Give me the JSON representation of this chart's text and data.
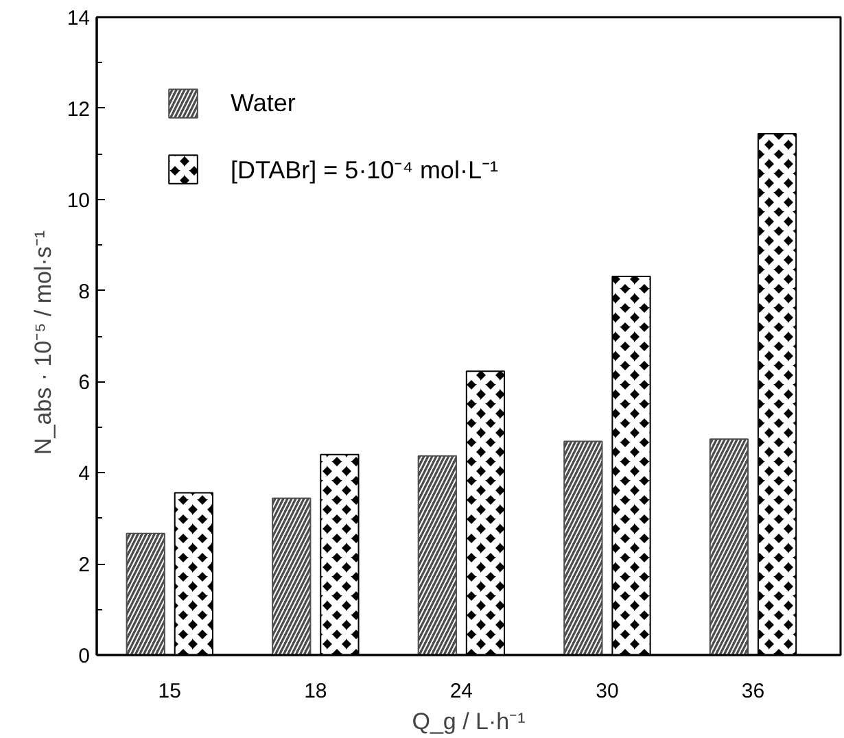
{
  "chart_data": {
    "type": "bar",
    "xlabel": "Q_g / L·h⁻¹",
    "ylabel": "N_abs · 10⁻⁵  /  mol·s⁻¹",
    "categories": [
      "15",
      "18",
      "24",
      "30",
      "36"
    ],
    "series": [
      {
        "name": "Water",
        "color": "#4d4d4d",
        "values": [
          2.67,
          3.44,
          4.37,
          4.69,
          4.74
        ]
      },
      {
        "name": "[DTABr] = 5·10⁻⁴ mol·L⁻¹",
        "color": "#000000",
        "values": [
          3.56,
          4.4,
          6.23,
          8.31,
          11.44
        ]
      }
    ],
    "ylim": [
      0,
      14
    ],
    "yticks": [
      0,
      2,
      4,
      6,
      8,
      10,
      12,
      14
    ],
    "grid": false,
    "legend": "top left"
  }
}
